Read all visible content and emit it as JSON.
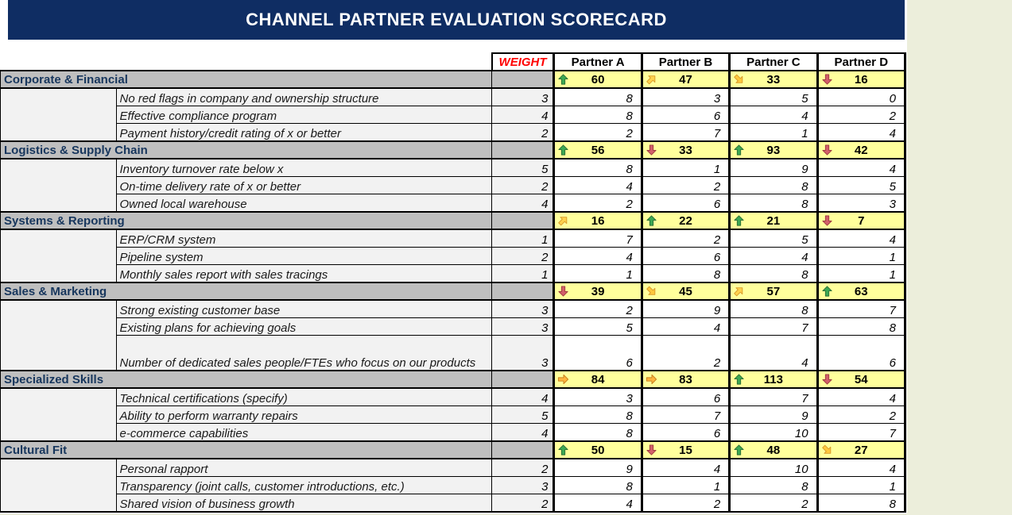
{
  "title": {
    "text": "CHANNEL PARTNER EVALUATION SCORECARD",
    "bg": "#0F2D63",
    "color": "#FFFFFF"
  },
  "colors": {
    "page_bg": "#ECEEDB",
    "category_bg": "#BFBFBF",
    "category_text": "#17365D",
    "total_bg": "#FFFF9C",
    "weight_label": "#FF0000",
    "detail_bg": "#F2F2F2"
  },
  "header": {
    "weight_label": "WEIGHT",
    "partners": [
      "Partner A",
      "Partner B",
      "Partner C",
      "Partner D"
    ]
  },
  "icon_styles": {
    "arrow-up-green": {
      "fill": "#3DA853",
      "stroke": "#2C6E36",
      "angle": 0
    },
    "arrow-diag-up-yellow": {
      "fill": "#FFD24D",
      "stroke": "#D99B2B",
      "angle": 45
    },
    "arrow-right-orange": {
      "fill": "#FFB53E",
      "stroke": "#C9811E",
      "angle": 90
    },
    "arrow-diag-down-yellow": {
      "fill": "#FFC83D",
      "stroke": "#D9992B",
      "angle": 135
    },
    "arrow-down-red": {
      "fill": "#D2606A",
      "stroke": "#9E3A3F",
      "angle": 180
    }
  },
  "sections": [
    {
      "name": "Corporate & Financial",
      "totals": [
        {
          "icon": "arrow-up-green",
          "value": 60
        },
        {
          "icon": "arrow-diag-up-yellow",
          "value": 47
        },
        {
          "icon": "arrow-diag-down-yellow",
          "value": 33
        },
        {
          "icon": "arrow-down-red",
          "value": 16
        }
      ],
      "rows": [
        {
          "criterion": "No red flags in company and ownership structure",
          "weight": 3,
          "scores": [
            8,
            3,
            5,
            0
          ]
        },
        {
          "criterion": "Effective compliance program",
          "weight": 4,
          "scores": [
            8,
            6,
            4,
            2
          ]
        },
        {
          "criterion": "Payment history/credit rating of x or better",
          "weight": 2,
          "scores": [
            2,
            7,
            1,
            4
          ]
        }
      ]
    },
    {
      "name": "Logistics & Supply Chain",
      "totals": [
        {
          "icon": "arrow-up-green",
          "value": 56
        },
        {
          "icon": "arrow-down-red",
          "value": 33
        },
        {
          "icon": "arrow-up-green",
          "value": 93
        },
        {
          "icon": "arrow-down-red",
          "value": 42
        }
      ],
      "rows": [
        {
          "criterion": "Inventory turnover rate below x",
          "weight": 5,
          "scores": [
            8,
            1,
            9,
            4
          ]
        },
        {
          "criterion": "On-time delivery rate of x or better",
          "weight": 2,
          "scores": [
            4,
            2,
            8,
            5
          ]
        },
        {
          "criterion": "Owned local warehouse",
          "weight": 4,
          "scores": [
            2,
            6,
            8,
            3
          ]
        }
      ]
    },
    {
      "name": "Systems & Reporting",
      "totals": [
        {
          "icon": "arrow-diag-up-yellow",
          "value": 16
        },
        {
          "icon": "arrow-up-green",
          "value": 22
        },
        {
          "icon": "arrow-up-green",
          "value": 21
        },
        {
          "icon": "arrow-down-red",
          "value": 7
        }
      ],
      "rows": [
        {
          "criterion": "ERP/CRM system",
          "weight": 1,
          "scores": [
            7,
            2,
            5,
            4
          ]
        },
        {
          "criterion": "Pipeline system",
          "weight": 2,
          "scores": [
            4,
            6,
            4,
            1
          ]
        },
        {
          "criterion": "Monthly sales report  with sales tracings",
          "weight": 1,
          "scores": [
            1,
            8,
            8,
            1
          ]
        }
      ]
    },
    {
      "name": "Sales & Marketing",
      "totals": [
        {
          "icon": "arrow-down-red",
          "value": 39
        },
        {
          "icon": "arrow-diag-down-yellow",
          "value": 45
        },
        {
          "icon": "arrow-diag-up-yellow",
          "value": 57
        },
        {
          "icon": "arrow-up-green",
          "value": 63
        }
      ],
      "rows": [
        {
          "criterion": "Strong existing customer base",
          "weight": 3,
          "scores": [
            2,
            9,
            8,
            7
          ]
        },
        {
          "criterion": "Existing plans for achieving goals",
          "weight": 3,
          "scores": [
            5,
            4,
            7,
            8
          ]
        },
        {
          "criterion": "Number of dedicated sales people/FTEs who focus on our products",
          "weight": 3,
          "scores": [
            6,
            2,
            4,
            6
          ],
          "tall": true
        }
      ]
    },
    {
      "name": "Specialized Skills",
      "totals": [
        {
          "icon": "arrow-right-orange",
          "value": 84
        },
        {
          "icon": "arrow-right-orange",
          "value": 83
        },
        {
          "icon": "arrow-up-green",
          "value": 113
        },
        {
          "icon": "arrow-down-red",
          "value": 54
        }
      ],
      "rows": [
        {
          "criterion": "Technical certifications (specify)",
          "weight": 4,
          "scores": [
            3,
            6,
            7,
            4
          ]
        },
        {
          "criterion": "Ability to perform warranty repairs",
          "weight": 5,
          "scores": [
            8,
            7,
            9,
            2
          ]
        },
        {
          "criterion": "e-commerce capabilities",
          "weight": 4,
          "scores": [
            8,
            6,
            10,
            7
          ]
        }
      ]
    },
    {
      "name": "Cultural Fit",
      "totals": [
        {
          "icon": "arrow-up-green",
          "value": 50
        },
        {
          "icon": "arrow-down-red",
          "value": 15
        },
        {
          "icon": "arrow-up-green",
          "value": 48
        },
        {
          "icon": "arrow-diag-down-yellow",
          "value": 27
        }
      ],
      "rows": [
        {
          "criterion": "Personal rapport",
          "weight": 2,
          "scores": [
            9,
            4,
            10,
            4
          ]
        },
        {
          "criterion": "Transparency (joint calls, customer introductions, etc.)",
          "weight": 3,
          "scores": [
            8,
            1,
            8,
            1
          ]
        },
        {
          "criterion": "Shared vision of business growth",
          "weight": 2,
          "scores": [
            4,
            2,
            2,
            8
          ]
        }
      ]
    }
  ]
}
